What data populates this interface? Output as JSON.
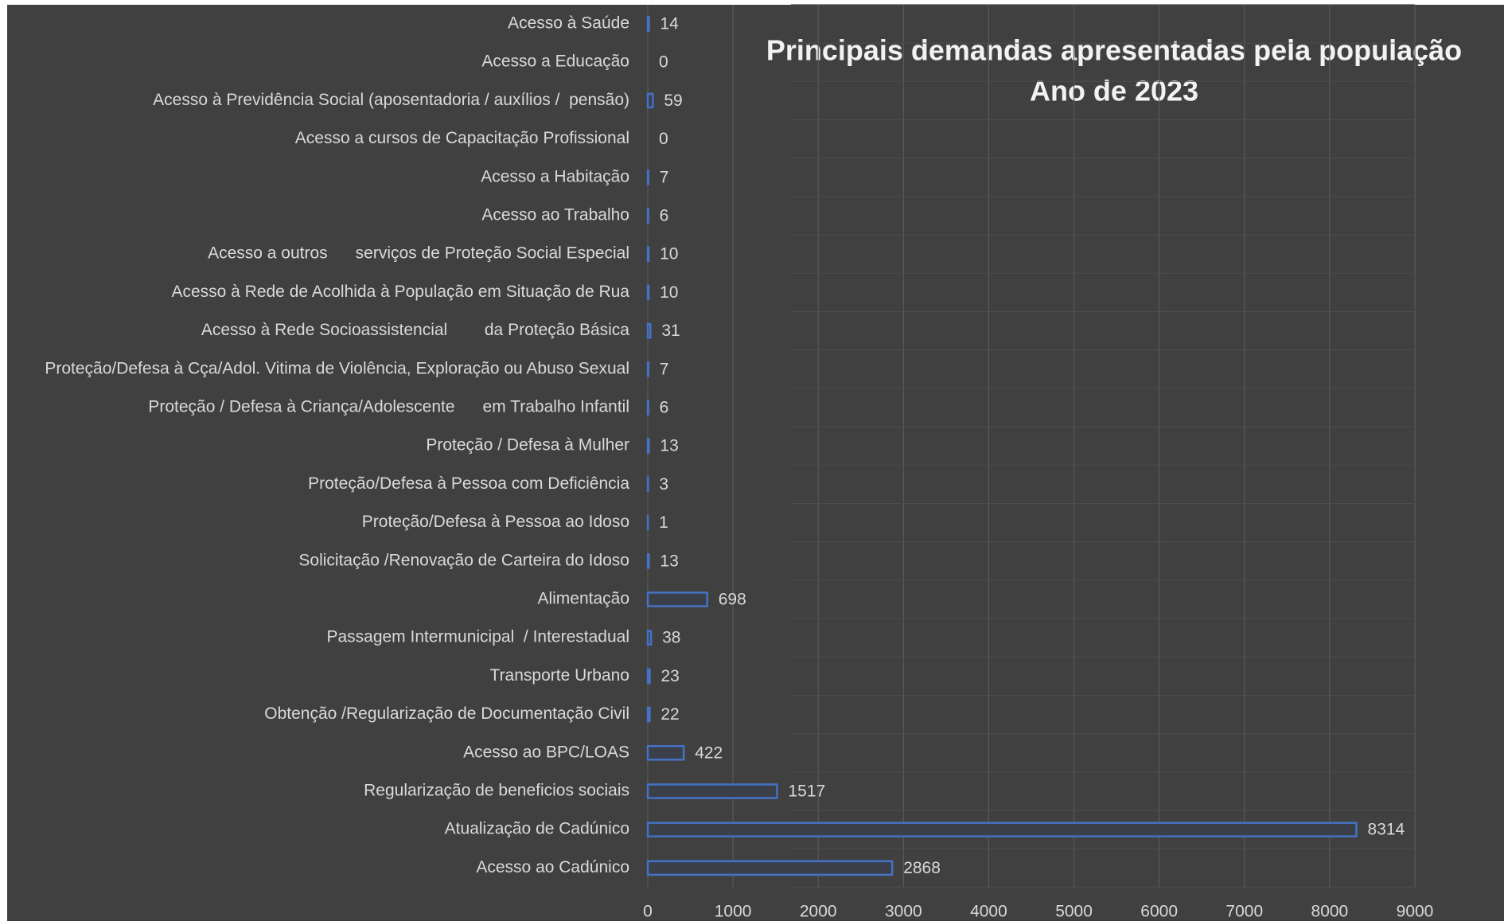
{
  "chart_data": {
    "type": "bar",
    "orientation": "horizontal",
    "title": "Principais demandas apresentadas pela população",
    "subtitle": "Ano de 2023",
    "categories": [
      "Acesso à Saúde",
      "Acesso a Educação",
      "Acesso à Previdência Social (aposentadoria / auxílios /  pensão)",
      "Acesso a cursos de Capacitação Profissional",
      "Acesso a Habitação",
      "Acesso ao Trabalho",
      "Acesso a outros      serviços de Proteção Social Especial",
      "Acesso à Rede de Acolhida à População em Situação de Rua",
      "Acesso à Rede Socioassistencial        da Proteção Básica",
      "Proteção/Defesa à Cça/Adol. Vitima de Violência, Exploração ou Abuso Sexual",
      "Proteção / Defesa à Criança/Adolescente      em Trabalho Infantil",
      "Proteção / Defesa à Mulher",
      "Proteção/Defesa à Pessoa com Deficiência",
      "Proteção/Defesa à Pessoa ao Idoso",
      "Solicitação /Renovação de Carteira do Idoso",
      "Alimentação",
      "Passagem Intermunicipal  / Interestadual",
      "Transporte Urbano",
      "Obtenção /Regularização de Documentação Civil",
      "Acesso ao BPC/LOAS",
      "Regularização de beneficios sociais",
      "Atualização de Cadúnico",
      "Acesso ao Cadúnico"
    ],
    "values": [
      14,
      0,
      59,
      0,
      7,
      6,
      10,
      10,
      31,
      7,
      6,
      13,
      3,
      1,
      13,
      698,
      38,
      23,
      22,
      422,
      1517,
      8314,
      2868
    ],
    "color": "#4472c4",
    "xlim": [
      0,
      9000
    ],
    "xticks": [
      0,
      1000,
      2000,
      3000,
      4000,
      5000,
      6000,
      7000,
      8000,
      9000
    ],
    "grid": true
  }
}
